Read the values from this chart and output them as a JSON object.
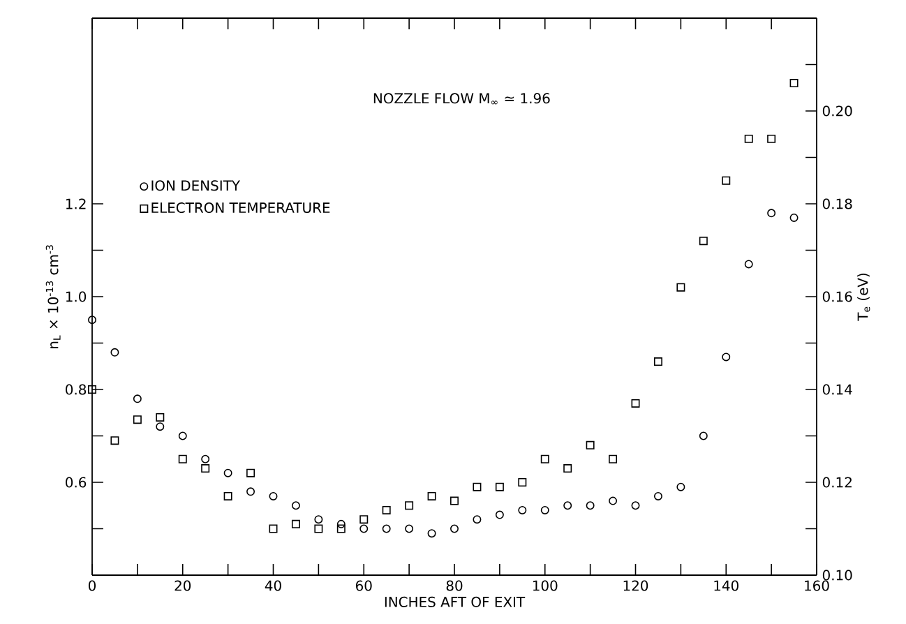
{
  "chart_data": {
    "type": "scatter",
    "title": "NOZZLE FLOW   M$_{∞}$ ≃ 1.96",
    "xlabel": "INCHES AFT OF EXIT",
    "ylabel": "n$_{L}$ × 10$^{-13}$ cm$^{-3}$",
    "y2label": "T$_{e}$ (eV)",
    "x": [
      0,
      5,
      10,
      15,
      20,
      25,
      30,
      35,
      40,
      45,
      50,
      55,
      60,
      65,
      70,
      75,
      80,
      85,
      90,
      95,
      100,
      105,
      110,
      115,
      120,
      125,
      130,
      135,
      140,
      145,
      150,
      155
    ],
    "series": [
      {
        "name": "ION DENSITY",
        "color": "#000000",
        "marker": "circle",
        "values": [
          0.95,
          0.88,
          0.78,
          0.72,
          0.7,
          0.65,
          0.62,
          0.58,
          0.57,
          0.55,
          0.52,
          0.51,
          0.5,
          0.5,
          0.5,
          0.49,
          0.5,
          0.52,
          0.53,
          0.54,
          0.54,
          0.55,
          0.55,
          0.56,
          0.55,
          0.57,
          0.59,
          0.7,
          0.87,
          1.07,
          1.18,
          1.17
        ]
      },
      {
        "name": "ELECTRON TEMPERATURE",
        "color": "#000000",
        "marker": "square",
        "axis": "y2",
        "values": [
          0.14,
          0.129,
          0.1335,
          0.134,
          0.125,
          0.123,
          0.117,
          0.122,
          0.11,
          0.111,
          0.11,
          0.11,
          0.112,
          0.114,
          0.115,
          0.117,
          0.116,
          0.119,
          0.119,
          0.12,
          0.125,
          0.123,
          0.128,
          0.125,
          0.137,
          0.146,
          0.162,
          0.172,
          0.185,
          0.194,
          0.194,
          0.206
        ]
      }
    ],
    "xlim": [
      0,
      160
    ],
    "xticks": [
      0,
      20,
      40,
      60,
      80,
      100,
      120,
      140,
      160,
      {
        "value": 10,
        "label": null
      },
      {
        "value": 30,
        "label": null
      },
      {
        "value": 50,
        "label": null
      },
      {
        "value": 70,
        "label": null
      },
      {
        "value": 90,
        "label": null
      },
      {
        "value": 110,
        "label": null
      },
      {
        "value": 130,
        "label": null
      },
      {
        "value": 150,
        "label": null
      }
    ],
    "ylim": [
      0.4,
      1.6
    ],
    "yticks": [
      {
        "value": 0.6,
        "label": "0.6"
      },
      {
        "value": 0.8,
        "label": "0.8"
      },
      {
        "value": 1.0,
        "label": "1.0"
      },
      {
        "value": 1.2,
        "label": "1.2"
      },
      {
        "value": 0.5,
        "label": null
      },
      {
        "value": 0.7,
        "label": null
      },
      {
        "value": 0.9,
        "label": null
      },
      {
        "value": 1.1,
        "label": null
      }
    ],
    "y2lim": [
      0.1,
      0.22
    ],
    "y2ticks": [
      {
        "value": 0.1,
        "label": "0.10"
      },
      {
        "value": 0.12,
        "label": "0.12"
      },
      {
        "value": 0.14,
        "label": "0.14"
      },
      {
        "value": 0.16,
        "label": "0.16"
      },
      {
        "value": 0.18,
        "label": "0.18"
      },
      {
        "value": 0.2,
        "label": "0.20"
      },
      {
        "value": 0.11,
        "label": null
      },
      {
        "value": 0.13,
        "label": null
      },
      {
        "value": 0.15,
        "label": null
      },
      {
        "value": 0.17,
        "label": null
      },
      {
        "value": 0.19,
        "label": null
      },
      {
        "value": 0.21,
        "label": null
      }
    ],
    "legend": "top left"
  }
}
